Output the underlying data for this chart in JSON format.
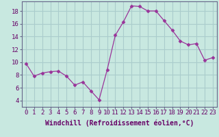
{
  "x": [
    0,
    1,
    2,
    3,
    4,
    5,
    6,
    7,
    8,
    9,
    10,
    11,
    12,
    13,
    14,
    15,
    16,
    17,
    18,
    19,
    20,
    21,
    22,
    23
  ],
  "y": [
    9.8,
    7.8,
    8.3,
    8.5,
    8.6,
    7.8,
    6.4,
    6.9,
    5.5,
    4.1,
    8.8,
    14.2,
    16.3,
    18.8,
    18.7,
    18.0,
    18.0,
    16.5,
    15.0,
    13.3,
    12.7,
    12.9,
    10.3,
    10.7
  ],
  "line_color": "#993399",
  "marker": "D",
  "marker_size": 2.5,
  "bg_color": "#c8e8e0",
  "grid_color": "#aacccc",
  "xlabel": "Windchill (Refroidissement éolien,°C)",
  "xlabel_fontsize": 7,
  "tick_fontsize": 6.5,
  "xlim": [
    -0.5,
    23.5
  ],
  "ylim": [
    3.0,
    19.5
  ],
  "yticks": [
    4,
    6,
    8,
    10,
    12,
    14,
    16,
    18
  ],
  "xticks": [
    0,
    1,
    2,
    3,
    4,
    5,
    6,
    7,
    8,
    9,
    10,
    11,
    12,
    13,
    14,
    15,
    16,
    17,
    18,
    19,
    20,
    21,
    22,
    23
  ]
}
